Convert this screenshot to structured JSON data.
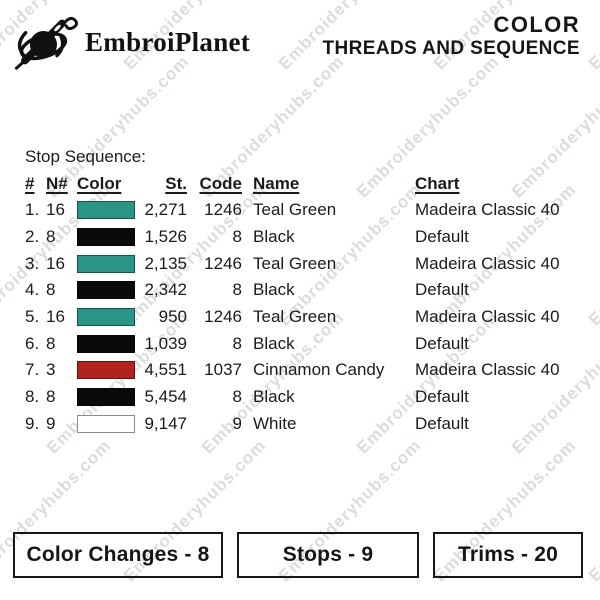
{
  "brand": {
    "name": "EmbroiPlanet"
  },
  "title": {
    "line1": "COLOR",
    "line2": "THREADS AND SEQUENCE"
  },
  "watermark": {
    "text": "Embroideryhubs.com"
  },
  "section": {
    "heading": "Stop Sequence:"
  },
  "table": {
    "headers": [
      "#",
      "N#",
      "Color",
      "St.",
      "Code",
      "Name",
      "Chart"
    ],
    "rows": [
      {
        "num": "1.",
        "needle": "16",
        "swatch": "#2A9486",
        "st": "2,271",
        "code": "1246",
        "name": "Teal Green",
        "chart": "Madeira Classic 40"
      },
      {
        "num": "2.",
        "needle": "8",
        "swatch": "#0A0A0A",
        "st": "1,526",
        "code": "8",
        "name": "Black",
        "chart": "Default"
      },
      {
        "num": "3.",
        "needle": "16",
        "swatch": "#2A9486",
        "st": "2,135",
        "code": "1246",
        "name": "Teal Green",
        "chart": "Madeira Classic 40"
      },
      {
        "num": "4.",
        "needle": "8",
        "swatch": "#0A0A0A",
        "st": "2,342",
        "code": "8",
        "name": "Black",
        "chart": "Default"
      },
      {
        "num": "5.",
        "needle": "16",
        "swatch": "#2A9486",
        "st": "950",
        "code": "1246",
        "name": "Teal Green",
        "chart": "Madeira Classic 40"
      },
      {
        "num": "6.",
        "needle": "8",
        "swatch": "#0A0A0A",
        "st": "1,039",
        "code": "8",
        "name": "Black",
        "chart": "Default"
      },
      {
        "num": "7.",
        "needle": "3",
        "swatch": "#B3231D",
        "st": "4,551",
        "code": "1037",
        "name": "Cinnamon Candy",
        "chart": "Madeira Classic 40"
      },
      {
        "num": "8.",
        "needle": "8",
        "swatch": "#0A0A0A",
        "st": "5,454",
        "code": "8",
        "name": "Black",
        "chart": "Default"
      },
      {
        "num": "9.",
        "needle": "9",
        "swatch": "#FFFFFF",
        "st": "9,147",
        "code": "9",
        "name": "White",
        "chart": "Default"
      }
    ]
  },
  "footer": {
    "color_changes": "Color Changes - 8",
    "stops": "Stops - 9",
    "trims": "Trims - 20"
  },
  "colors": {
    "teal_green": "#2A9486",
    "black": "#0A0A0A",
    "cinnamon_candy": "#B3231D",
    "white": "#FFFFFF",
    "ink": "#161616"
  }
}
